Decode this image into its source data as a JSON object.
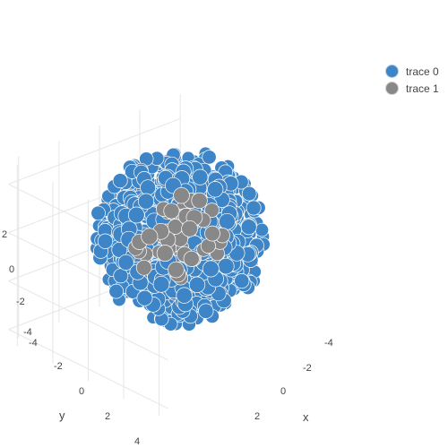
{
  "chart_data": {
    "type": "scatter",
    "projection": "3d",
    "title": "",
    "axes": {
      "x": {
        "title": "x",
        "ticks": [
          "-4",
          "-2",
          "0",
          "2"
        ],
        "range": [
          -4.5,
          4
        ]
      },
      "y": {
        "title": "y",
        "ticks": [
          "-4",
          "-2",
          "0",
          "2",
          "4"
        ],
        "range": [
          -4.5,
          4.5
        ]
      },
      "z": {
        "title": "",
        "ticks": [
          "2",
          "0",
          "-2",
          "-4"
        ],
        "range": [
          -4.5,
          3
        ]
      }
    },
    "series": [
      {
        "name": "trace 0",
        "color": "#3d85c6",
        "marker_outline": "#ffffff",
        "point_count": 900,
        "distribution": "roughly spherical cloud centered near origin, radius ~3.2 data units"
      },
      {
        "name": "trace 1",
        "color": "#888888",
        "marker_outline": "#ffffff",
        "point_count": 45,
        "distribution": "tighter cluster near origin, radius ~1.8 data units, drawn in front"
      }
    ],
    "legend": {
      "position": "top-right",
      "entries": [
        "trace 0",
        "trace 1"
      ]
    },
    "grid": true
  },
  "colors": {
    "trace0": "#3d85c6",
    "trace1": "#888888",
    "grid": "#e6e6e6",
    "axis": "#444444"
  }
}
